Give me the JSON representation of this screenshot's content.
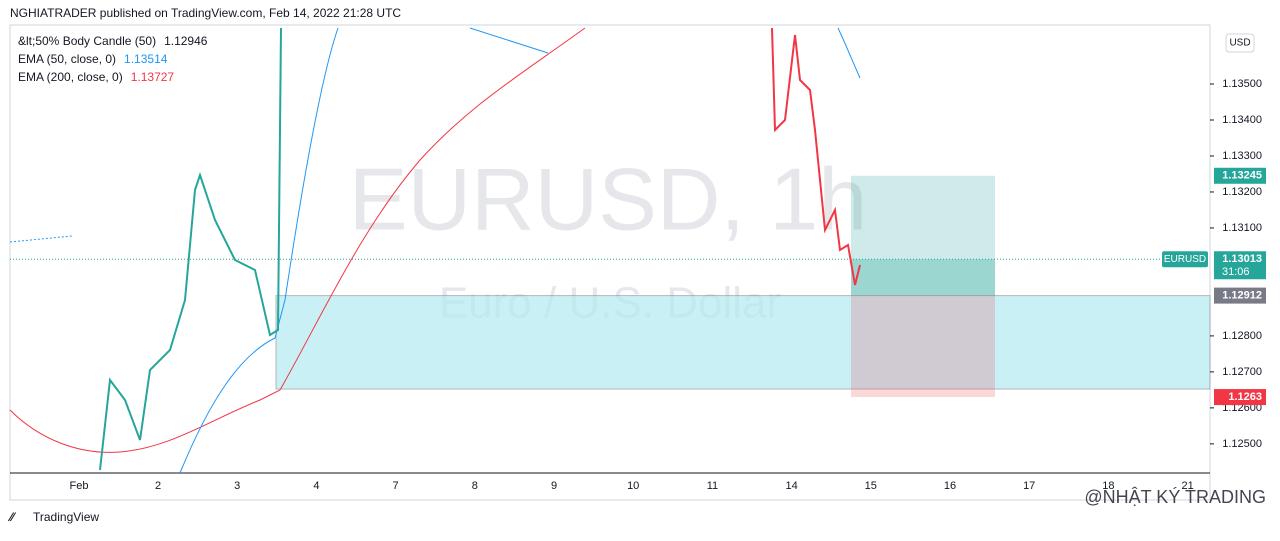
{
  "header": {
    "text": "NGHIATRADER published on TradingView.com, Feb 14, 2022 21:28 UTC"
  },
  "legend": [
    {
      "label": "&lt;50% Body Candle (50)",
      "value": 1.12946,
      "color": "#131722"
    },
    {
      "label": "EMA (50, close, 0)",
      "value": 1.13514,
      "color": "#2196f3"
    },
    {
      "label": "EMA (200, close, 0)",
      "value": 1.13727,
      "color": "#f23645"
    }
  ],
  "currency": "USD",
  "watermark": {
    "symbol": "EURUSD, 1h",
    "description": "Euro / U.S. Dollar"
  },
  "price_axis": {
    "ylim": [
      1.12419,
      1.13664
    ],
    "yticks": [
      {
        "value": 1.135,
        "label": "1.13500"
      },
      {
        "value": 1.134,
        "label": "1.13400"
      },
      {
        "value": 1.133,
        "label": "1.13300"
      },
      {
        "value": 1.132,
        "label": "1.13200"
      },
      {
        "value": 1.131,
        "label": "1.13100"
      },
      {
        "value": 1.128,
        "label": "1.12800"
      },
      {
        "value": 1.127,
        "label": "1.12700"
      },
      {
        "value": 1.126,
        "label": "1.12600"
      },
      {
        "value": 1.125,
        "label": "1.12500"
      }
    ]
  },
  "time_axis": {
    "labels": [
      "Feb",
      "2",
      "3",
      "4",
      "7",
      "8",
      "9",
      "10",
      "11",
      "14",
      "15",
      "16",
      "17",
      "18",
      "21"
    ]
  },
  "price_labels": [
    {
      "value": 1.13245,
      "color": "#26a69a"
    },
    {
      "value": 1.12912,
      "color": "#787b86"
    },
    {
      "value": 1.1263,
      "color": "#f23645"
    }
  ],
  "last_price": {
    "symbol": "EURUSD",
    "value": 1.13013,
    "countdown": "31:06",
    "color": "#26a69a"
  },
  "footer": {
    "brand": "TradingView",
    "credit": "@NHẬT KÝ TRADING"
  }
}
